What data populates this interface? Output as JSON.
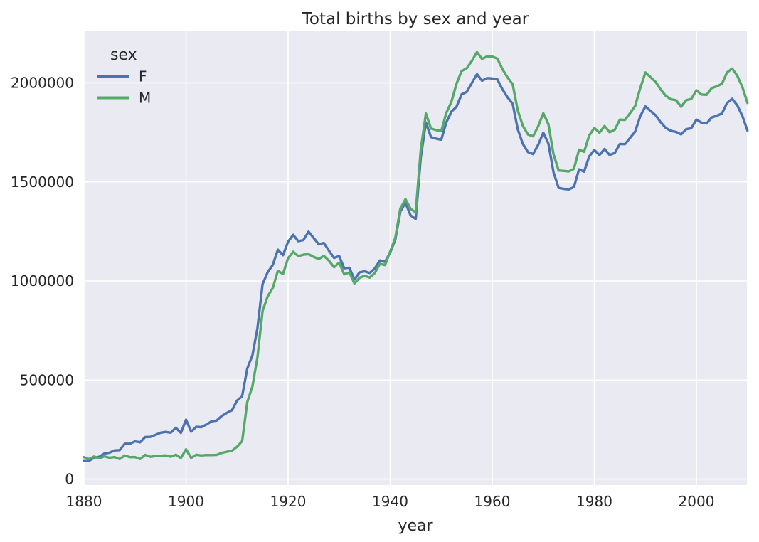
{
  "chart": {
    "title": "Total births by sex and year",
    "xlabel": "year",
    "legend": {
      "title": "sex",
      "entries": [
        {
          "label": "F",
          "color": "#4c72b0"
        },
        {
          "label": "M",
          "color": "#55a868"
        }
      ]
    },
    "colors": {
      "figure_background": "#ffffff",
      "axes_background": "#eaeaf2",
      "grid": "#ffffff",
      "text": "#262626",
      "series_f": "#4c72b0",
      "series_m": "#55a868"
    }
  },
  "chart_data": {
    "type": "line",
    "title": "Total births by sex and year",
    "xlabel": "year",
    "ylabel": "",
    "grid": true,
    "legend_position": "upper left",
    "legend_title": "sex",
    "xlim": [
      1880,
      2010
    ],
    "ylim": [
      -30000,
      2246000
    ],
    "x_ticks": [
      1880,
      1900,
      1920,
      1940,
      1960,
      1980,
      2000
    ],
    "y_ticks": [
      0,
      500000,
      1000000,
      1500000,
      2000000
    ],
    "x": [
      1880,
      1881,
      1882,
      1883,
      1884,
      1885,
      1886,
      1887,
      1888,
      1889,
      1890,
      1891,
      1892,
      1893,
      1894,
      1895,
      1896,
      1897,
      1898,
      1899,
      1900,
      1901,
      1902,
      1903,
      1904,
      1905,
      1906,
      1907,
      1908,
      1909,
      1910,
      1911,
      1912,
      1913,
      1914,
      1915,
      1916,
      1917,
      1918,
      1919,
      1920,
      1921,
      1922,
      1923,
      1924,
      1925,
      1926,
      1927,
      1928,
      1929,
      1930,
      1931,
      1932,
      1933,
      1934,
      1935,
      1936,
      1937,
      1938,
      1939,
      1940,
      1941,
      1942,
      1943,
      1944,
      1945,
      1946,
      1947,
      1948,
      1949,
      1950,
      1951,
      1952,
      1953,
      1954,
      1955,
      1956,
      1957,
      1958,
      1959,
      1960,
      1961,
      1962,
      1963,
      1964,
      1965,
      1966,
      1967,
      1968,
      1969,
      1970,
      1971,
      1972,
      1973,
      1974,
      1975,
      1976,
      1977,
      1978,
      1979,
      1980,
      1981,
      1982,
      1983,
      1984,
      1985,
      1986,
      1987,
      1988,
      1989,
      1990,
      1991,
      1992,
      1993,
      1994,
      1995,
      1996,
      1997,
      1998,
      1999,
      2000,
      2001,
      2002,
      2003,
      2004,
      2005,
      2006,
      2007,
      2008,
      2009,
      2010
    ],
    "series": [
      {
        "name": "F",
        "color": "#4c72b0",
        "values": [
          90993,
          91955,
          107851,
          112322,
          129021,
          133056,
          144538,
          145983,
          178631,
          178369,
          190377,
          185486,
          212350,
          212908,
          222923,
          233632,
          237923,
          234202,
          258772,
          233023,
          299828,
          239348,
          264079,
          261976,
          275376,
          291619,
          295303,
          318558,
          334277,
          347191,
          396416,
          418180,
          557939,
          624400,
          761389,
          983824,
          1044249,
          1081194,
          1157585,
          1130149,
          1198214,
          1232845,
          1200796,
          1206487,
          1248904,
          1217096,
          1185045,
          1192240,
          1152793,
          1116255,
          1125521,
          1064184,
          1066872,
          1007323,
          1043487,
          1048324,
          1040225,
          1063891,
          1103488,
          1096106,
          1143548,
          1208192,
          1350702,
          1394573,
          1330747,
          1312875,
          1622766,
          1800064,
          1725942,
          1718484,
          1713111,
          1800392,
          1854444,
          1880164,
          1941817,
          1954381,
          1999411,
          2044160,
          2010881,
          2023980,
          2022093,
          2017316,
          1966565,
          1927217,
          1894278,
          1765093,
          1691815,
          1650646,
          1640152,
          1687541,
          1748264,
          1694577,
          1549317,
          1469488,
          1464874,
          1461959,
          1473954,
          1563278,
          1551742,
          1628843,
          1661166,
          1635477,
          1666339,
          1636066,
          1646085,
          1691734,
          1690535,
          1722227,
          1754069,
          1832020,
          1880982,
          1859010,
          1836586,
          1801038,
          1772447,
          1757691,
          1752497,
          1739806,
          1765915,
          1770851,
          1814601,
          1799049,
          1795206,
          1825359,
          1834145,
          1845379,
          1898463,
          1919408,
          1886765,
          1832925,
          1759010
        ]
      },
      {
        "name": "M",
        "color": "#55a868",
        "values": [
          110493,
          100748,
          113687,
          104632,
          114445,
          107800,
          110785,
          101412,
          118870,
          110590,
          111026,
          101198,
          122038,
          112319,
          115775,
          117398,
          119575,
          112758,
          122693,
          106218,
          150554,
          106478,
          122660,
          119234,
          121445,
          121070,
          121783,
          132160,
          137710,
          143018,
          163543,
          191335,
          388510,
          467267,
          614160,
          848554,
          922214,
          964841,
          1051341,
          1035206,
          1115147,
          1147705,
          1125462,
          1132661,
          1135156,
          1121544,
          1110279,
          1126717,
          1102209,
          1069148,
          1093000,
          1033319,
          1043381,
          987572,
          1015836,
          1026288,
          1016807,
          1040628,
          1086998,
          1080147,
          1148443,
          1217728,
          1365947,
          1412689,
          1364631,
          1345618,
          1662968,
          1845367,
          1769277,
          1761632,
          1756122,
          1848499,
          1904554,
          1996157,
          2059624,
          2073719,
          2110629,
          2155711,
          2120712,
          2133509,
          2132717,
          2122502,
          2068566,
          2027364,
          1992965,
          1860541,
          1783189,
          1739486,
          1730280,
          1781072,
          1846572,
          1791700,
          1640635,
          1557637,
          1555424,
          1552889,
          1565885,
          1662844,
          1651963,
          1734267,
          1772782,
          1748425,
          1781919,
          1750779,
          1763159,
          1814285,
          1812871,
          1847071,
          1883271,
          1973923,
          2052386,
          2029154,
          2004883,
          1966760,
          1934619,
          1916544,
          1912626,
          1879492,
          1912355,
          1918809,
          1962406,
          1941251,
          1939815,
          1973434,
          1982855,
          1994841,
          2052377,
          2072139,
          2036289,
          1979303,
          1898382
        ]
      }
    ]
  }
}
